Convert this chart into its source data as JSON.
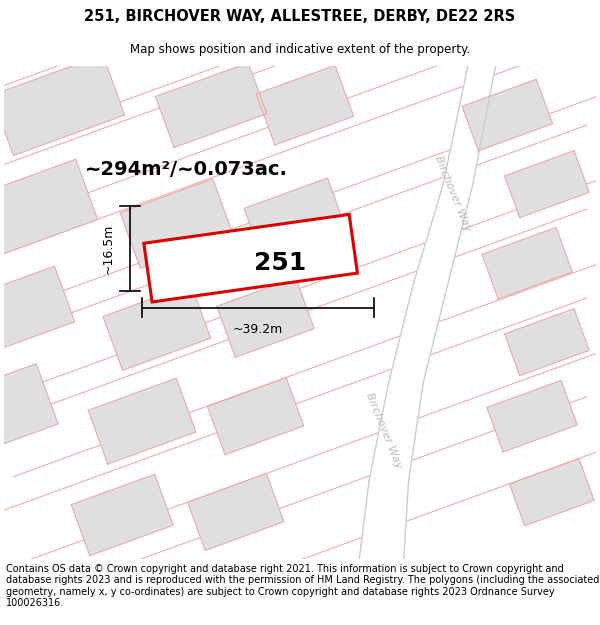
{
  "title": "251, BIRCHOVER WAY, ALLESTREE, DERBY, DE22 2RS",
  "subtitle": "Map shows position and indicative extent of the property.",
  "footer": "Contains OS data © Crown copyright and database right 2021. This information is subject to Crown copyright and database rights 2023 and is reproduced with the permission of HM Land Registry. The polygons (including the associated geometry, namely x, y co-ordinates) are subject to Crown copyright and database rights 2023 Ordnance Survey 100026316.",
  "area_text": "~294m²/~0.073ac.",
  "width_label": "~39.2m",
  "height_label": "~16.5m",
  "number_label": "251",
  "map_bg": "#ffffff",
  "building_fill": "#e0dfdf",
  "building_edge": "#cccccc",
  "road_line_color": "#f0a0a0",
  "plot_edge_color": "#dd0000",
  "bway_line_color": "#cccccc",
  "road_label_color": "#bbbbbb",
  "title_fontsize": 10.5,
  "subtitle_fontsize": 8.5,
  "footer_fontsize": 7.0,
  "area_fontsize": 14,
  "num_fontsize": 18,
  "dim_fontsize": 9
}
